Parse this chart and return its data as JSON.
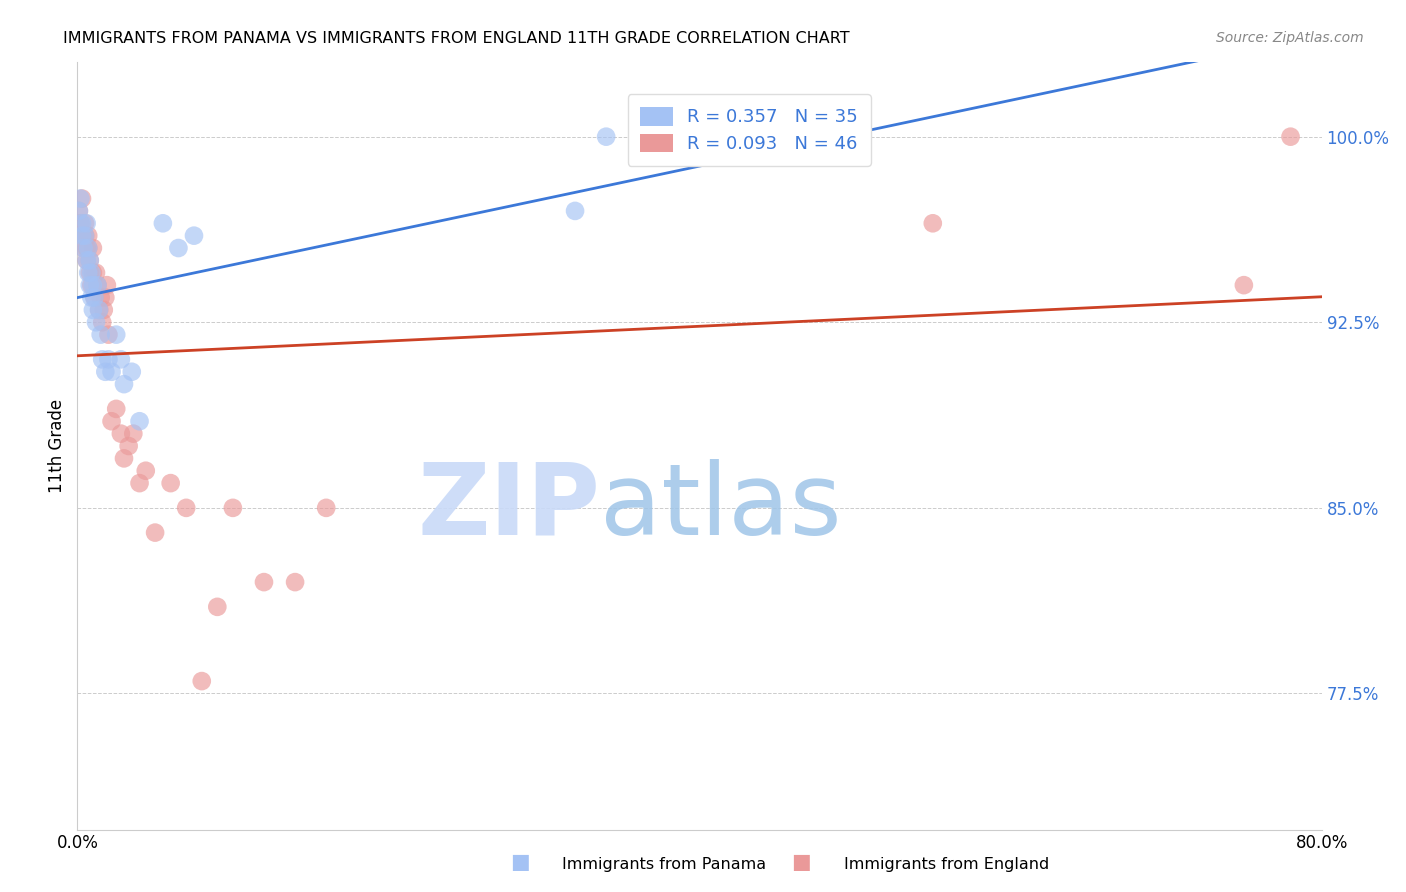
{
  "title": "IMMIGRANTS FROM PANAMA VS IMMIGRANTS FROM ENGLAND 11TH GRADE CORRELATION CHART",
  "source": "Source: ZipAtlas.com",
  "ylabel": "11th Grade",
  "xlim": [
    0.0,
    0.8
  ],
  "ylim": [
    0.72,
    1.03
  ],
  "yticks": [
    0.775,
    0.85,
    0.925,
    1.0
  ],
  "ytick_labels": [
    "77.5%",
    "85.0%",
    "92.5%",
    "100.0%"
  ],
  "panama_R": 0.357,
  "panama_N": 35,
  "england_R": 0.093,
  "england_N": 46,
  "panama_color": "#a4c2f4",
  "england_color": "#ea9999",
  "panama_line_color": "#3c78d8",
  "england_line_color": "#cc4125",
  "panama_x": [
    0.001,
    0.002,
    0.003,
    0.003,
    0.004,
    0.005,
    0.006,
    0.006,
    0.007,
    0.007,
    0.008,
    0.008,
    0.009,
    0.009,
    0.01,
    0.01,
    0.011,
    0.012,
    0.013,
    0.014,
    0.015,
    0.016,
    0.018,
    0.02,
    0.022,
    0.025,
    0.028,
    0.03,
    0.035,
    0.04,
    0.055,
    0.065,
    0.075,
    0.32,
    0.34
  ],
  "panama_y": [
    0.97,
    0.975,
    0.96,
    0.965,
    0.955,
    0.96,
    0.965,
    0.95,
    0.945,
    0.955,
    0.95,
    0.94,
    0.945,
    0.935,
    0.94,
    0.93,
    0.935,
    0.925,
    0.94,
    0.93,
    0.92,
    0.91,
    0.905,
    0.91,
    0.905,
    0.92,
    0.91,
    0.9,
    0.905,
    0.885,
    0.965,
    0.955,
    0.96,
    0.97,
    1.0
  ],
  "england_x": [
    0.001,
    0.002,
    0.003,
    0.003,
    0.004,
    0.005,
    0.005,
    0.006,
    0.006,
    0.007,
    0.007,
    0.008,
    0.008,
    0.009,
    0.01,
    0.01,
    0.011,
    0.012,
    0.013,
    0.014,
    0.015,
    0.016,
    0.017,
    0.018,
    0.019,
    0.02,
    0.022,
    0.025,
    0.028,
    0.03,
    0.033,
    0.036,
    0.04,
    0.044,
    0.05,
    0.06,
    0.07,
    0.08,
    0.09,
    0.1,
    0.12,
    0.14,
    0.16,
    0.55,
    0.75,
    0.78
  ],
  "england_y": [
    0.97,
    0.965,
    0.975,
    0.96,
    0.955,
    0.96,
    0.965,
    0.955,
    0.95,
    0.96,
    0.955,
    0.945,
    0.95,
    0.94,
    0.945,
    0.955,
    0.935,
    0.945,
    0.94,
    0.93,
    0.935,
    0.925,
    0.93,
    0.935,
    0.94,
    0.92,
    0.885,
    0.89,
    0.88,
    0.87,
    0.875,
    0.88,
    0.86,
    0.865,
    0.84,
    0.86,
    0.85,
    0.78,
    0.81,
    0.85,
    0.82,
    0.82,
    0.85,
    0.965,
    0.94,
    1.0
  ],
  "watermark_color_zip": "#c9daf8",
  "watermark_color_atlas": "#9fc5e8",
  "background_color": "#ffffff",
  "grid_color": "#cccccc"
}
